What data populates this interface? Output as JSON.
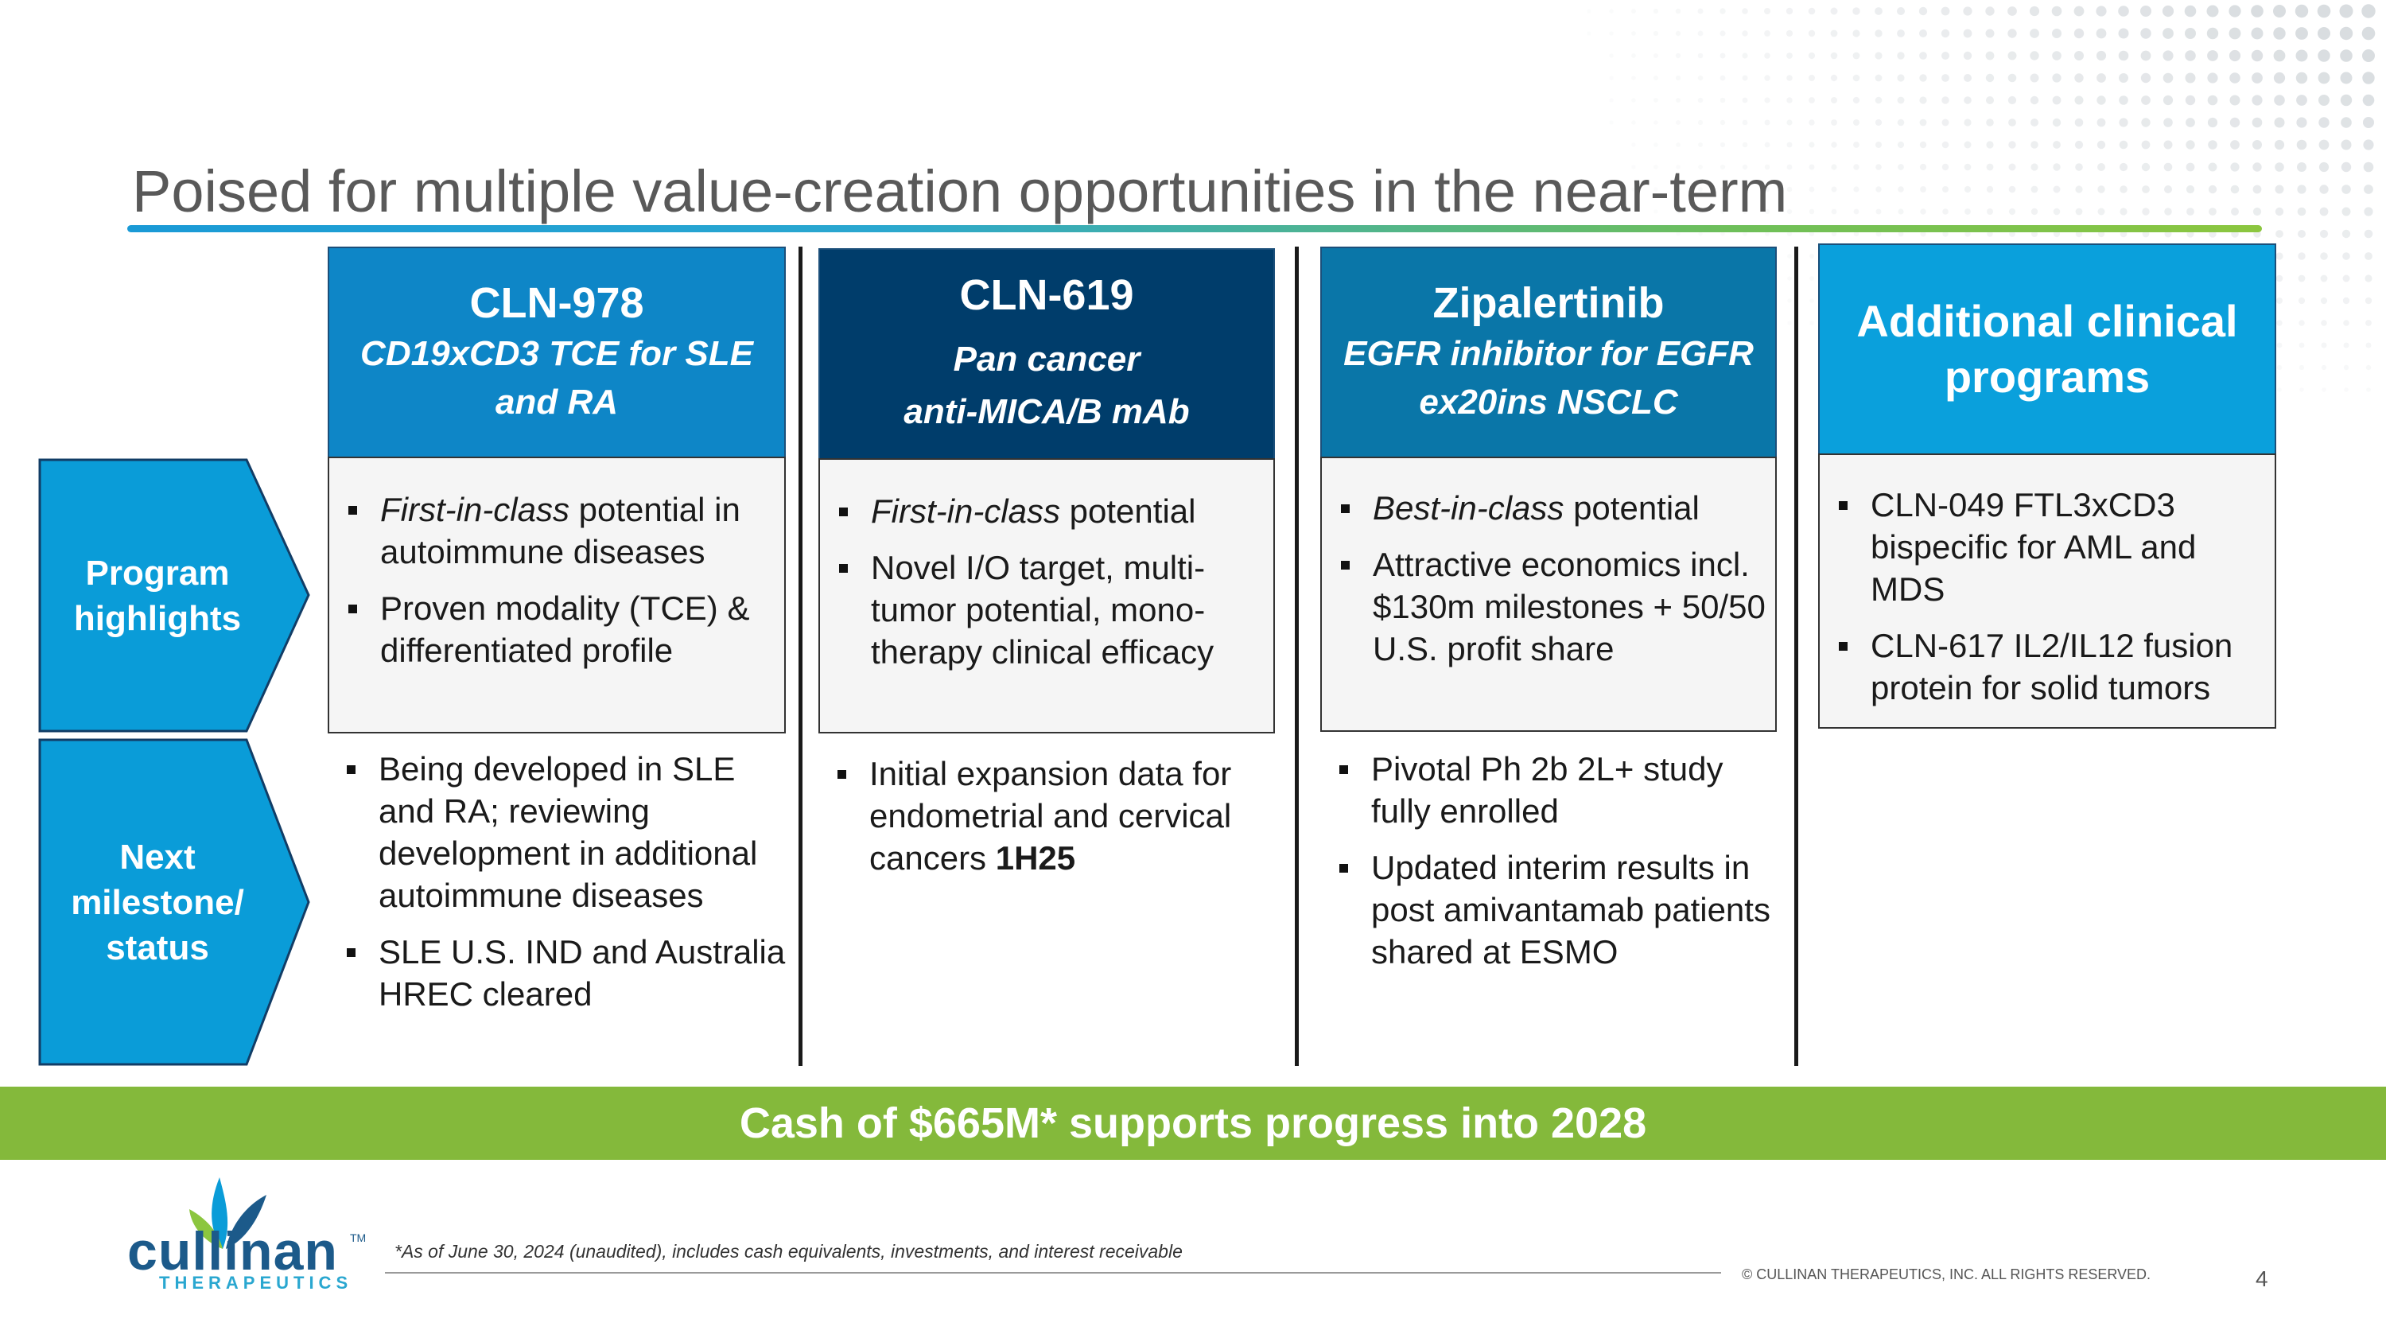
{
  "slide": {
    "title": "Poised for multiple value-creation opportunities in the near-term",
    "colors": {
      "col1_header": "#0e86c7",
      "col2_header": "#003d6b",
      "col3_header": "#0a76a8",
      "col4_header": "#0aa0dc",
      "row_arrow": "#0a9cd8",
      "banner": "#84b93b",
      "title_bar_start": "#1a9ad6",
      "title_bar_end": "#8cc63f"
    }
  },
  "rows": {
    "program_highlights": "Program highlights",
    "next_milestone": "Next milestone/ status"
  },
  "columns": [
    {
      "name": "CLN-978",
      "subtitle_lines": [
        "CD19xCD3 TCE for SLE",
        "and RA"
      ],
      "highlights": [
        {
          "italic": "First-in-class",
          "text": " potential in autoimmune diseases"
        },
        {
          "italic": "",
          "text": "Proven modality (TCE) & differentiated profile"
        }
      ],
      "milestones": [
        {
          "text": "Being developed in SLE and RA; reviewing development in additional autoimmune diseases",
          "bold": ""
        },
        {
          "text": "SLE U.S. IND and Australia HREC cleared",
          "bold": ""
        }
      ]
    },
    {
      "name": "CLN-619",
      "subtitle_lines": [
        "Pan cancer",
        "anti-MICA/B mAb"
      ],
      "highlights": [
        {
          "italic": "First-in-class",
          "text": " potential"
        },
        {
          "italic": "",
          "text": "Novel I/O target, multi-tumor potential, mono-therapy clinical efficacy"
        }
      ],
      "milestones": [
        {
          "text": "Initial expansion data for endometrial and cervical cancers ",
          "bold": "1H25"
        }
      ]
    },
    {
      "name": "Zipalertinib",
      "subtitle_lines": [
        "EGFR inhibitor for EGFR",
        "ex20ins NSCLC"
      ],
      "highlights": [
        {
          "italic": "Best-in-class",
          "text": " potential"
        },
        {
          "italic": "",
          "text": "Attractive economics incl. $130m milestones + 50/50 U.S. profit share"
        }
      ],
      "milestones": [
        {
          "text": "Pivotal Ph 2b 2L+ study fully enrolled",
          "bold": ""
        },
        {
          "text": "Updated interim results in post amivantamab patients shared at ESMO",
          "bold": ""
        }
      ]
    },
    {
      "name_lines": [
        "Additional clinical",
        "programs"
      ],
      "highlights": [
        {
          "italic": "",
          "text": "CLN-049 FTL3xCD3 bispecific for AML and MDS"
        },
        {
          "italic": "",
          "text": "CLN-617 IL2/IL12 fusion protein for solid tumors"
        }
      ]
    }
  ],
  "banner": {
    "text": "Cash of $665M* supports progress into 2028"
  },
  "footer": {
    "logo_word": "cullinan",
    "logo_tm": "TM",
    "logo_sub": "THERAPEUTICS",
    "footnote": "*As of June 30, 2024 (unaudited), includes cash equivalents, investments, and interest receivable",
    "copyright": "© CULLINAN THERAPEUTICS, INC. ALL RIGHTS RESERVED.",
    "page_number": "4"
  }
}
